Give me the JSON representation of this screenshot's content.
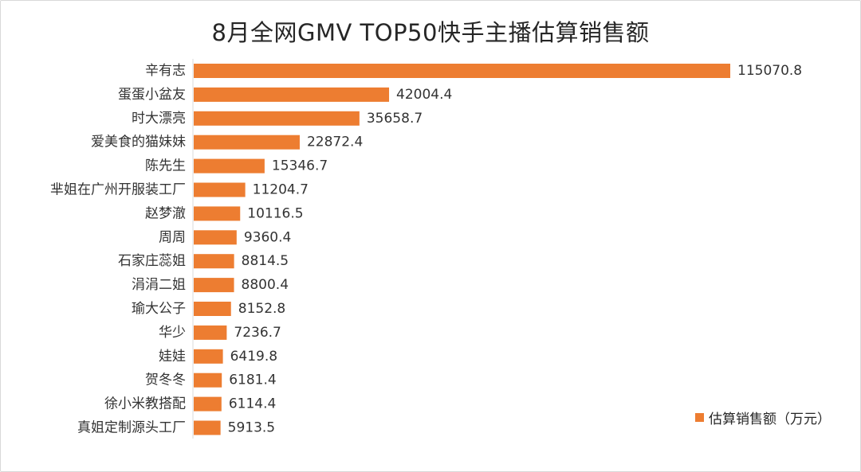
{
  "chart_data": {
    "type": "bar",
    "orientation": "horizontal",
    "title": "8月全网GMV TOP50快手主播估算销售额",
    "categories": [
      "辛有志",
      "蛋蛋小盆友",
      "时大漂亮",
      "爱美食的猫妹妹",
      "陈先生",
      "芈姐在广州开服装工厂",
      "赵梦澈",
      "周周",
      "石家庄蕊姐",
      "涓涓二姐",
      "瑜大公子",
      "华少",
      "娃娃",
      "贺冬冬",
      "徐小米教搭配",
      "真姐定制源头工厂"
    ],
    "series": [
      {
        "name": "估算销售额（万元）",
        "values": [
          115070.8,
          42004.4,
          35658.7,
          22872.4,
          15346.7,
          11204.7,
          10116.5,
          9360.4,
          8814.5,
          8800.4,
          8152.8,
          7236.7,
          6419.8,
          6181.4,
          6114.4,
          5913.5
        ]
      }
    ],
    "data_labels": [
      "115070.8",
      "42004.4",
      "35658.7",
      "22872.4",
      "15346.7",
      "11204.7",
      "10116.5",
      "9360.4",
      "8814.5",
      "8800.4",
      "8152.8",
      "7236.7",
      "6419.8",
      "6181.4",
      "6114.4",
      "5913.5"
    ],
    "legend_position": "bottom-right",
    "grid": false,
    "bar_color": "#ed7d31"
  }
}
